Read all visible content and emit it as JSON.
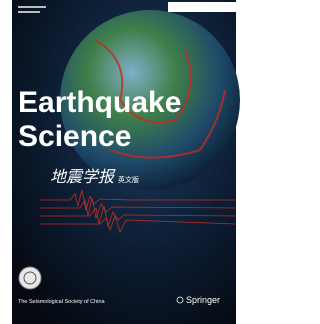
{
  "cover": {
    "title_line1": "Earthquake",
    "title_line2": "Science",
    "chinese_title": "地震学报",
    "chinese_subtitle": "英文版",
    "society": "The Seismological Society of China",
    "publisher": "Springer"
  }
}
